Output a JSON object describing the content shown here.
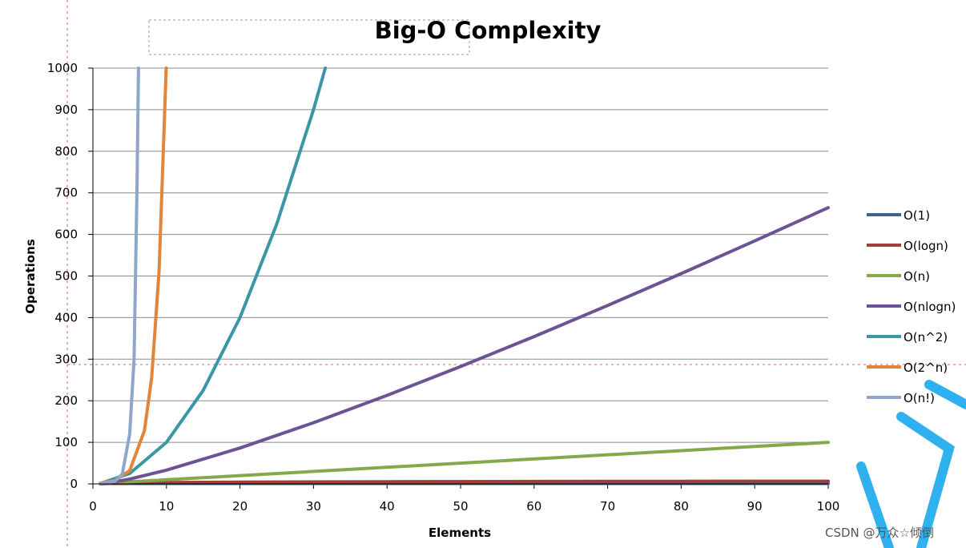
{
  "watermark": "CSDN @万众☆倾倒",
  "chart_data": {
    "type": "line",
    "title": "Big-O Complexity",
    "xlabel": "Elements",
    "ylabel": "Operations",
    "xlim": [
      0,
      100
    ],
    "ylim": [
      0,
      1000
    ],
    "xticks": [
      0,
      10,
      20,
      30,
      40,
      50,
      60,
      70,
      80,
      90,
      100
    ],
    "yticks": [
      0,
      100,
      200,
      300,
      400,
      500,
      600,
      700,
      800,
      900,
      1000
    ],
    "grid": "horizontal",
    "legend_position": "right",
    "series": [
      {
        "name": "O(1)",
        "color": "#3a6591",
        "x": [
          1,
          100
        ],
        "y": [
          1,
          1
        ]
      },
      {
        "name": "O(logn)",
        "color": "#a13d3a",
        "x": [
          1,
          2,
          5,
          10,
          20,
          40,
          60,
          80,
          100
        ],
        "y": [
          0,
          1,
          2.3,
          3.3,
          4.3,
          5.3,
          5.9,
          6.3,
          6.6
        ]
      },
      {
        "name": "O(n)",
        "color": "#86a84c",
        "x": [
          1,
          100
        ],
        "y": [
          1,
          100
        ]
      },
      {
        "name": "O(nlogn)",
        "color": "#6c5394",
        "x": [
          1,
          2,
          5,
          10,
          20,
          30,
          40,
          50,
          60,
          70,
          80,
          90,
          100
        ],
        "y": [
          0,
          2,
          11.6,
          33.2,
          86.4,
          147.2,
          212.9,
          282.2,
          354.4,
          429.1,
          505.8,
          584.3,
          664.4
        ]
      },
      {
        "name": "O(n^2)",
        "color": "#3a96a6",
        "x": [
          1,
          5,
          10,
          15,
          20,
          25,
          30,
          31.6
        ],
        "y": [
          1,
          25,
          100,
          225,
          400,
          625,
          900,
          1000
        ]
      },
      {
        "name": "O(2^n)",
        "color": "#e0853a",
        "x": [
          1,
          3,
          5,
          7,
          8,
          9,
          9.97
        ],
        "y": [
          2,
          8,
          32,
          128,
          256,
          512,
          1000
        ]
      },
      {
        "name": "O(n!)",
        "color": "#8ea6cc",
        "x": [
          1,
          3,
          4,
          5,
          5.6,
          6,
          6.2
        ],
        "y": [
          1,
          6,
          24,
          120,
          300,
          720,
          1000
        ]
      }
    ]
  }
}
